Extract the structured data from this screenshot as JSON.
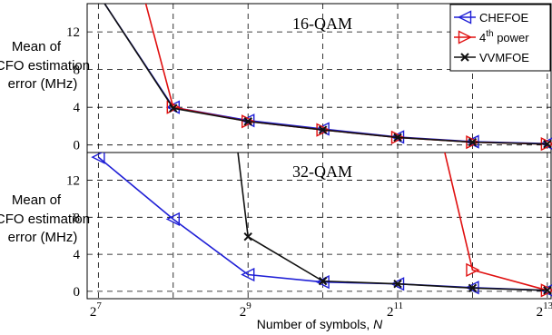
{
  "chart_data": [
    {
      "type": "line",
      "title": "16-QAM",
      "ylabel_lines": [
        "Mean of",
        "CFO estimation",
        "error (MHz)"
      ],
      "xlim_log2": [
        6.85,
        13.05
      ],
      "ylim": [
        -0.8,
        15
      ],
      "yticks": [
        0,
        4,
        8,
        12
      ],
      "grid": true,
      "legend": {
        "placement": "top-right",
        "entries": [
          {
            "label": "CHEFOE",
            "color": "#1f1fd6",
            "marker": "triangle-left"
          },
          {
            "label": "4",
            "sup": "th",
            "suffix": " power",
            "color": "#e01010",
            "marker": "triangle-right"
          },
          {
            "label": "VVMFOE",
            "color": "#111111",
            "marker": "x"
          }
        ]
      },
      "x_log2": [
        7,
        8,
        9,
        10,
        11,
        12,
        13
      ],
      "series": [
        {
          "name": "CHEFOE",
          "color": "#1f1fd6",
          "marker": "triangle-left",
          "x_log2": [
            7,
            8,
            9,
            10,
            11,
            12,
            13
          ],
          "values": [
            16,
            4.0,
            2.6,
            1.7,
            0.85,
            0.35,
            0.15
          ]
        },
        {
          "name": "4th power",
          "color": "#e01010",
          "marker": "triangle-right",
          "x_log2": [
            7.6,
            8,
            9,
            10,
            11,
            12,
            13
          ],
          "values": [
            16,
            4.0,
            2.5,
            1.6,
            0.8,
            0.3,
            0.1
          ]
        },
        {
          "name": "VVMFOE",
          "color": "#111111",
          "marker": "x",
          "x_log2": [
            7,
            8,
            9,
            10,
            11,
            12,
            13
          ],
          "values": [
            16,
            3.9,
            2.5,
            1.6,
            0.8,
            0.3,
            0.1
          ]
        }
      ]
    },
    {
      "type": "line",
      "title": "32-QAM",
      "ylabel_lines": [
        "Mean of",
        "CFO estimation",
        "error (MHz)"
      ],
      "xlabel": "Number of symbols, ",
      "xlabel_italic": "N",
      "xlim_log2": [
        6.85,
        13.05
      ],
      "ylim": [
        -0.8,
        15
      ],
      "yticks": [
        0,
        4,
        8,
        12
      ],
      "xticks": [
        {
          "log2": 7,
          "base": "2",
          "exp": "7"
        },
        {
          "log2": 9,
          "base": "2",
          "exp": "9"
        },
        {
          "log2": 11,
          "base": "2",
          "exp": "11"
        },
        {
          "log2": 13,
          "base": "2",
          "exp": "13"
        }
      ],
      "grid": true,
      "series": [
        {
          "name": "CHEFOE",
          "color": "#1f1fd6",
          "marker": "triangle-left",
          "x_log2": [
            7,
            8,
            9,
            10,
            11,
            12,
            13
          ],
          "values": [
            14.5,
            7.8,
            1.8,
            1.0,
            0.8,
            0.4,
            0.1
          ]
        },
        {
          "name": "4th power",
          "color": "#e01010",
          "marker": "triangle-right",
          "x_log2": [
            11.6,
            12,
            13
          ],
          "values": [
            16,
            2.3,
            0.1
          ]
        },
        {
          "name": "VVMFOE",
          "color": "#111111",
          "marker": "x",
          "x_log2": [
            8.85,
            9,
            10,
            11,
            12,
            13
          ],
          "values": [
            16,
            5.9,
            1.1,
            0.8,
            0.35,
            0.1
          ]
        }
      ]
    }
  ]
}
